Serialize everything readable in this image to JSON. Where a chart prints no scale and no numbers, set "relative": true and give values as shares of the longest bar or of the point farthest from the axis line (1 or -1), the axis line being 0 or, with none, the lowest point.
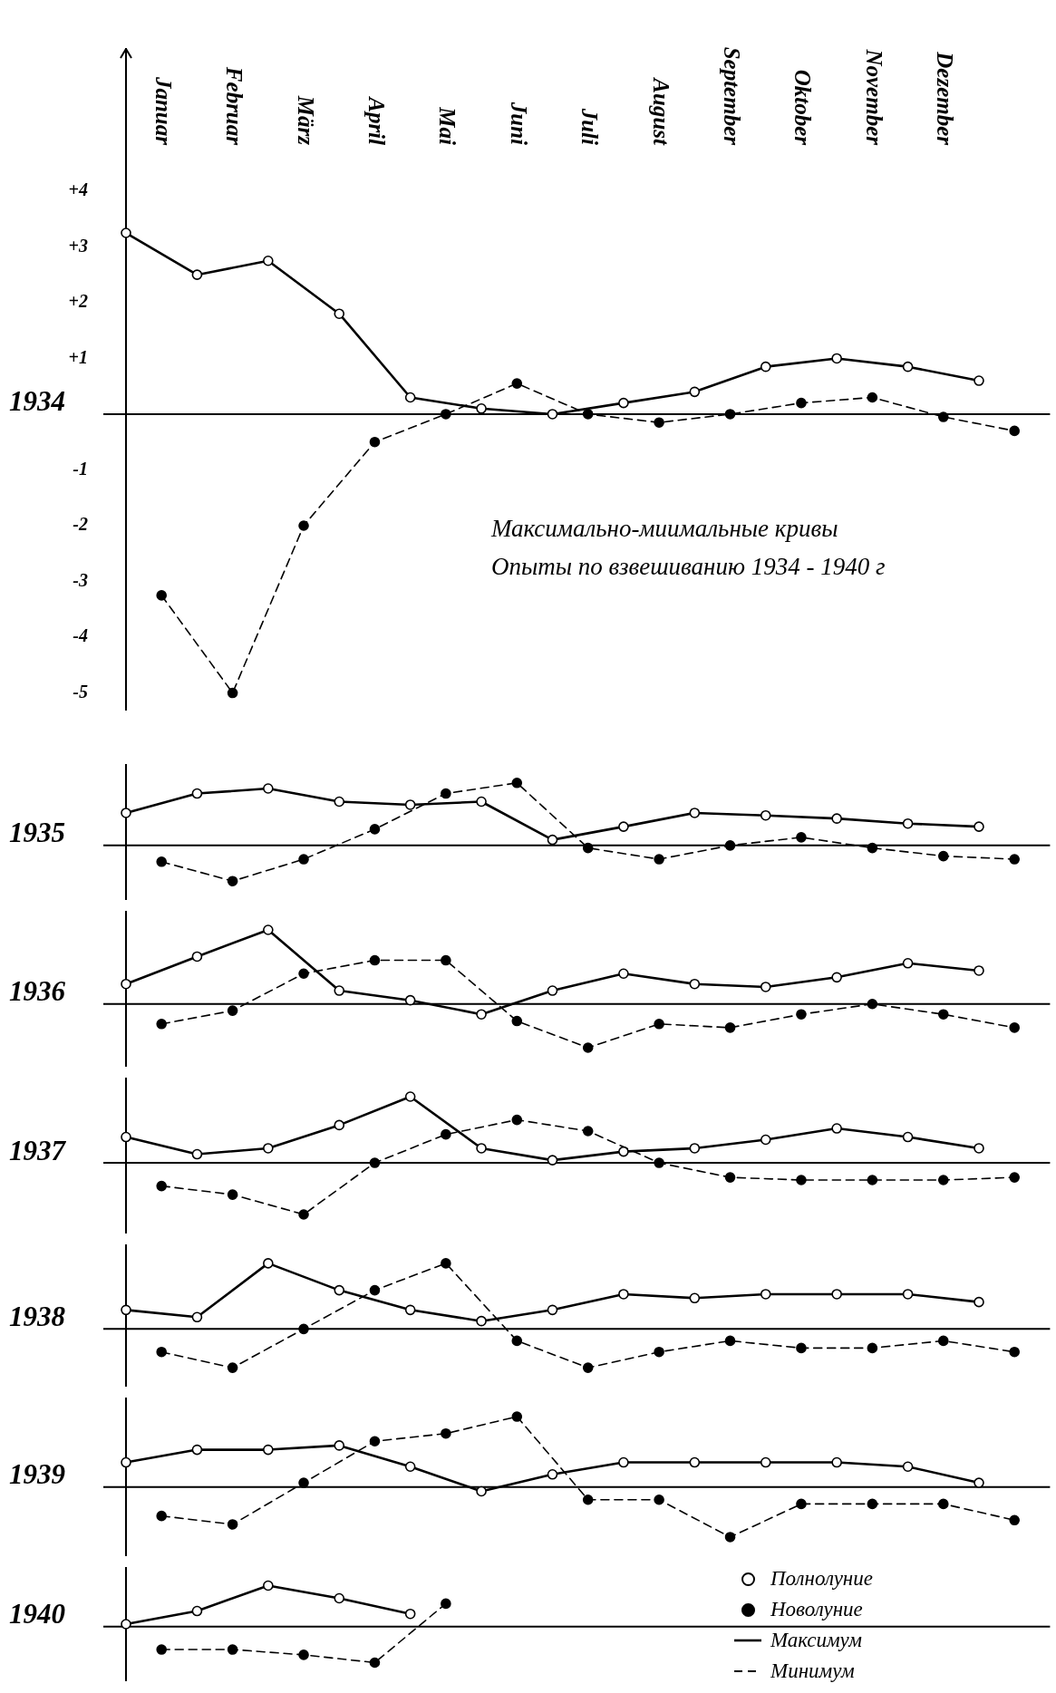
{
  "chart_data": [
    {
      "type": "line",
      "title": "Максимально-миимальные кривы",
      "subtitle": "Опыты по взвешиванию 1934 - 1940 г",
      "ylabel": "1934",
      "categories": [
        null,
        "Januar",
        null,
        "Februar",
        null,
        "März",
        null,
        "April",
        null,
        "Mai",
        null,
        "Juni",
        null,
        "Juli",
        null,
        "August",
        null,
        "September",
        null,
        "Oktober",
        null,
        "November",
        null,
        "Dezember",
        null,
        null
      ],
      "ylim": [
        -5.3,
        6.55
      ],
      "yticks": [
        {
          "value": 4,
          "label": "+4"
        },
        {
          "value": 3,
          "label": "+3"
        },
        {
          "value": 2,
          "label": "+2"
        },
        {
          "value": 1,
          "label": "+1"
        },
        -1,
        -2,
        -3,
        -4,
        -5
      ],
      "series": [
        {
          "color": "#000000",
          "line_style": "solid",
          "marker": "circle",
          "values": [
            3.25,
            null,
            2.5,
            null,
            2.75,
            null,
            1.8,
            null,
            0.3,
            null,
            0.1,
            null,
            0,
            null,
            0.2,
            null,
            0.4,
            null,
            0.85,
            null,
            1.0,
            null,
            0.85,
            null,
            0.6,
            null
          ]
        },
        {
          "color": "#000000",
          "line_style": "dashed",
          "marker": "circle",
          "values": [
            null,
            -3.25,
            null,
            -5.0,
            null,
            -2.0,
            null,
            -0.5,
            null,
            0,
            null,
            0.55,
            null,
            0,
            null,
            -0.15,
            null,
            0,
            null,
            0.2,
            null,
            0.3,
            null,
            -0.05,
            null,
            -0.3
          ]
        }
      ]
    },
    {
      "type": "line",
      "relative": true,
      "ylabel": "1935",
      "categories": [
        null,
        null,
        null,
        null,
        null,
        null,
        null,
        null,
        null,
        null,
        null,
        null,
        null,
        null,
        null,
        null,
        null,
        null,
        null,
        null,
        null,
        null,
        null,
        null,
        null,
        null
      ],
      "series": [
        {
          "color": "#000000",
          "line_style": "solid",
          "marker": "circle",
          "values": [
            0.52,
            null,
            0.83,
            null,
            0.91,
            null,
            0.7,
            null,
            0.65,
            null,
            0.7,
            null,
            0.09,
            null,
            0.3,
            null,
            0.52,
            null,
            0.48,
            null,
            0.43,
            null,
            0.35,
            null,
            0.3,
            null
          ]
        },
        {
          "color": "#000000",
          "line_style": "dashed",
          "marker": "circle",
          "values": [
            null,
            -0.26,
            null,
            -0.57,
            null,
            -0.22,
            null,
            0.26,
            null,
            0.83,
            null,
            1,
            null,
            -0.04,
            null,
            -0.22,
            null,
            0,
            null,
            0.13,
            null,
            -0.04,
            null,
            -0.17,
            null,
            -0.22
          ]
        }
      ]
    },
    {
      "type": "line",
      "relative": true,
      "ylabel": "1936",
      "categories": [
        null,
        null,
        null,
        null,
        null,
        null,
        null,
        null,
        null,
        null,
        null,
        null,
        null,
        null,
        null,
        null,
        null,
        null,
        null,
        null,
        null,
        null,
        null,
        null,
        null,
        null
      ],
      "series": [
        {
          "color": "#000000",
          "line_style": "solid",
          "marker": "circle",
          "values": [
            0.27,
            null,
            0.64,
            null,
            1,
            null,
            0.18,
            null,
            0.05,
            null,
            -0.14,
            null,
            0.18,
            null,
            0.41,
            null,
            0.27,
            null,
            0.23,
            null,
            0.36,
            null,
            0.55,
            null,
            0.45,
            null
          ]
        },
        {
          "color": "#000000",
          "line_style": "dashed",
          "marker": "circle",
          "values": [
            null,
            -0.27,
            null,
            -0.09,
            null,
            0.41,
            null,
            0.59,
            null,
            0.59,
            null,
            -0.23,
            null,
            -0.59,
            null,
            -0.27,
            null,
            -0.32,
            null,
            -0.14,
            null,
            0,
            null,
            -0.14,
            null,
            -0.32
          ]
        }
      ]
    },
    {
      "type": "line",
      "relative": true,
      "ylabel": "1937",
      "categories": [
        null,
        null,
        null,
        null,
        null,
        null,
        null,
        null,
        null,
        null,
        null,
        null,
        null,
        null,
        null,
        null,
        null,
        null,
        null,
        null,
        null,
        null,
        null,
        null,
        null,
        null
      ],
      "series": [
        {
          "color": "#000000",
          "line_style": "solid",
          "marker": "circle",
          "values": [
            0.39,
            null,
            0.13,
            null,
            0.22,
            null,
            0.57,
            null,
            1,
            null,
            0.22,
            null,
            0.04,
            null,
            0.17,
            null,
            0.22,
            null,
            0.35,
            null,
            0.52,
            null,
            0.39,
            null,
            0.22,
            null
          ]
        },
        {
          "color": "#000000",
          "line_style": "dashed",
          "marker": "circle",
          "values": [
            null,
            -0.35,
            null,
            -0.48,
            null,
            -0.78,
            null,
            0,
            null,
            0.43,
            null,
            0.65,
            null,
            0.48,
            null,
            0,
            null,
            -0.22,
            null,
            -0.26,
            null,
            -0.26,
            null,
            -0.26,
            null,
            -0.22
          ]
        }
      ]
    },
    {
      "type": "line",
      "relative": true,
      "ylabel": "1938",
      "categories": [
        null,
        null,
        null,
        null,
        null,
        null,
        null,
        null,
        null,
        null,
        null,
        null,
        null,
        null,
        null,
        null,
        null,
        null,
        null,
        null,
        null,
        null,
        null,
        null,
        null,
        null
      ],
      "series": [
        {
          "color": "#000000",
          "line_style": "solid",
          "marker": "circle",
          "values": [
            0.29,
            null,
            0.18,
            null,
            1,
            null,
            0.59,
            null,
            0.29,
            null,
            0.12,
            null,
            0.29,
            null,
            0.53,
            null,
            0.47,
            null,
            0.53,
            null,
            0.53,
            null,
            0.53,
            null,
            0.41,
            null
          ]
        },
        {
          "color": "#000000",
          "line_style": "dashed",
          "marker": "circle",
          "values": [
            null,
            -0.35,
            null,
            -0.59,
            null,
            0,
            null,
            0.59,
            null,
            1,
            null,
            -0.18,
            null,
            -0.59,
            null,
            -0.35,
            null,
            -0.18,
            null,
            -0.29,
            null,
            -0.29,
            null,
            -0.18,
            null,
            -0.35
          ]
        }
      ]
    },
    {
      "type": "line",
      "relative": true,
      "ylabel": "1939",
      "categories": [
        null,
        null,
        null,
        null,
        null,
        null,
        null,
        null,
        null,
        null,
        null,
        null,
        null,
        null,
        null,
        null,
        null,
        null,
        null,
        null,
        null,
        null,
        null,
        null,
        null,
        null
      ],
      "series": [
        {
          "color": "#000000",
          "line_style": "solid",
          "marker": "circle",
          "values": [
            0.35,
            null,
            0.53,
            null,
            0.53,
            null,
            0.59,
            null,
            0.29,
            null,
            -0.06,
            null,
            0.18,
            null,
            0.35,
            null,
            0.35,
            null,
            0.35,
            null,
            0.35,
            null,
            0.29,
            null,
            0.06,
            null
          ]
        },
        {
          "color": "#000000",
          "line_style": "dashed",
          "marker": "circle",
          "values": [
            null,
            -0.41,
            null,
            -0.53,
            null,
            0.06,
            null,
            0.65,
            null,
            0.76,
            null,
            1,
            null,
            -0.18,
            null,
            -0.18,
            null,
            -0.71,
            null,
            -0.24,
            null,
            -0.24,
            null,
            -0.24,
            null,
            -0.47
          ]
        }
      ]
    },
    {
      "type": "line",
      "relative": true,
      "ylabel": "1940",
      "legend": "bottom right",
      "annotations": [
        "Полнолуние",
        "Новолуние"
      ],
      "categories": [
        null,
        null,
        null,
        null,
        null,
        null,
        null,
        null,
        null,
        null,
        null,
        null,
        null,
        null,
        null,
        null,
        null,
        null,
        null,
        null,
        null,
        null,
        null,
        null,
        null,
        null
      ],
      "series": [
        {
          "name": "Максимум",
          "color": "#000000",
          "line_style": "solid",
          "marker": "circle",
          "values": [
            0.06,
            null,
            0.38,
            null,
            1,
            null,
            0.69,
            null,
            0.31,
            null,
            null,
            null,
            null,
            null,
            null,
            null,
            null,
            null,
            null,
            null,
            null,
            null,
            null,
            null,
            null,
            null
          ]
        },
        {
          "name": "Минимум",
          "color": "#000000",
          "line_style": "dashed",
          "marker": "circle",
          "values": [
            null,
            -0.56,
            null,
            -0.56,
            null,
            -0.69,
            null,
            -0.88,
            null,
            0.56,
            null,
            null,
            null,
            null,
            null,
            null,
            null,
            null,
            null,
            null,
            null,
            null,
            null,
            null,
            null,
            null
          ]
        }
      ]
    }
  ]
}
